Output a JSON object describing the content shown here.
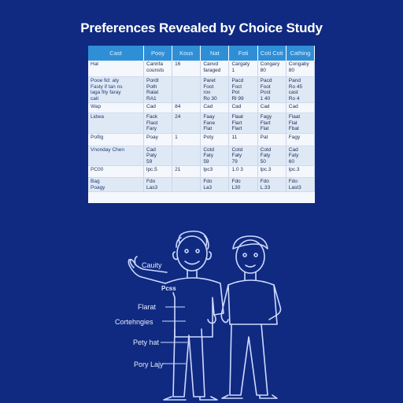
{
  "title": "Preferences Revealed by Choice Study",
  "table": {
    "headers": [
      "Cast",
      "Pooy",
      "Kous",
      "Nat",
      "Foti",
      "Coti Coti",
      "Cathing"
    ],
    "rows": [
      [
        "Hat",
        "Cannfa\ncounsts",
        "16",
        "Canvd\nfaraged",
        "Cargaty\n1",
        "Congary\n80",
        "Congaby\n80"
      ],
      [
        "Pooe  fid:  aty\nFasty  if  tan  ns\nlaga  fity  faray\ncati",
        "Pordt\nPoth\nRalat\nRA1",
        "",
        "Paret\nFoot\nrov\nRo 30",
        "Pacd\nFoct\nPot\nRl 99",
        "Pacd\nFoot\nPost\n1 40",
        "Pand\nRo 45\ncast\nRo 4"
      ],
      [
        "Wap",
        "Cad",
        "84",
        "Cad",
        "Cad",
        "Cad",
        "Cad"
      ],
      [
        "Lidwa",
        "Fack\nFlaot\nFary",
        "24",
        "Faay\nFane\nFlat",
        "Flaat\nFlart\nFlart",
        "Fagy\nFlart\nFlat",
        "Flaat\nFlat\nFbat"
      ],
      [
        "Pofilg",
        "Poay",
        "1",
        "Poty",
        "11",
        "Pat",
        "Fagy"
      ],
      [
        "Vnonday  Chen",
        "Cad\nPaty\n59",
        "",
        "Cotd\nFaty\n59",
        "Cotd\nFaty\n79",
        "Cotd\nFaty\n50",
        "Cad\nFaty\n60"
      ],
      [
        "PC00",
        "lpc.5",
        "21",
        "lpc3",
        "1.0 3",
        "lpc.3",
        "lpc.3"
      ],
      [
        "Bag\nPoagy",
        "Fdo\nLas3",
        "",
        "Fdo\nLa3",
        "Fdo\nL30",
        "Fdo\nL.33",
        "Fdo\nLast3"
      ]
    ]
  },
  "figure": {
    "shirt_label": "Pcss",
    "annotations": [
      "Cauity",
      "Flarat",
      "Cortehngies",
      "Pety hat",
      "Pory Lajy"
    ]
  },
  "colors": {
    "background": "#0f2a80",
    "header": "#2f8fd6",
    "line_art": "#cfd9ff"
  }
}
